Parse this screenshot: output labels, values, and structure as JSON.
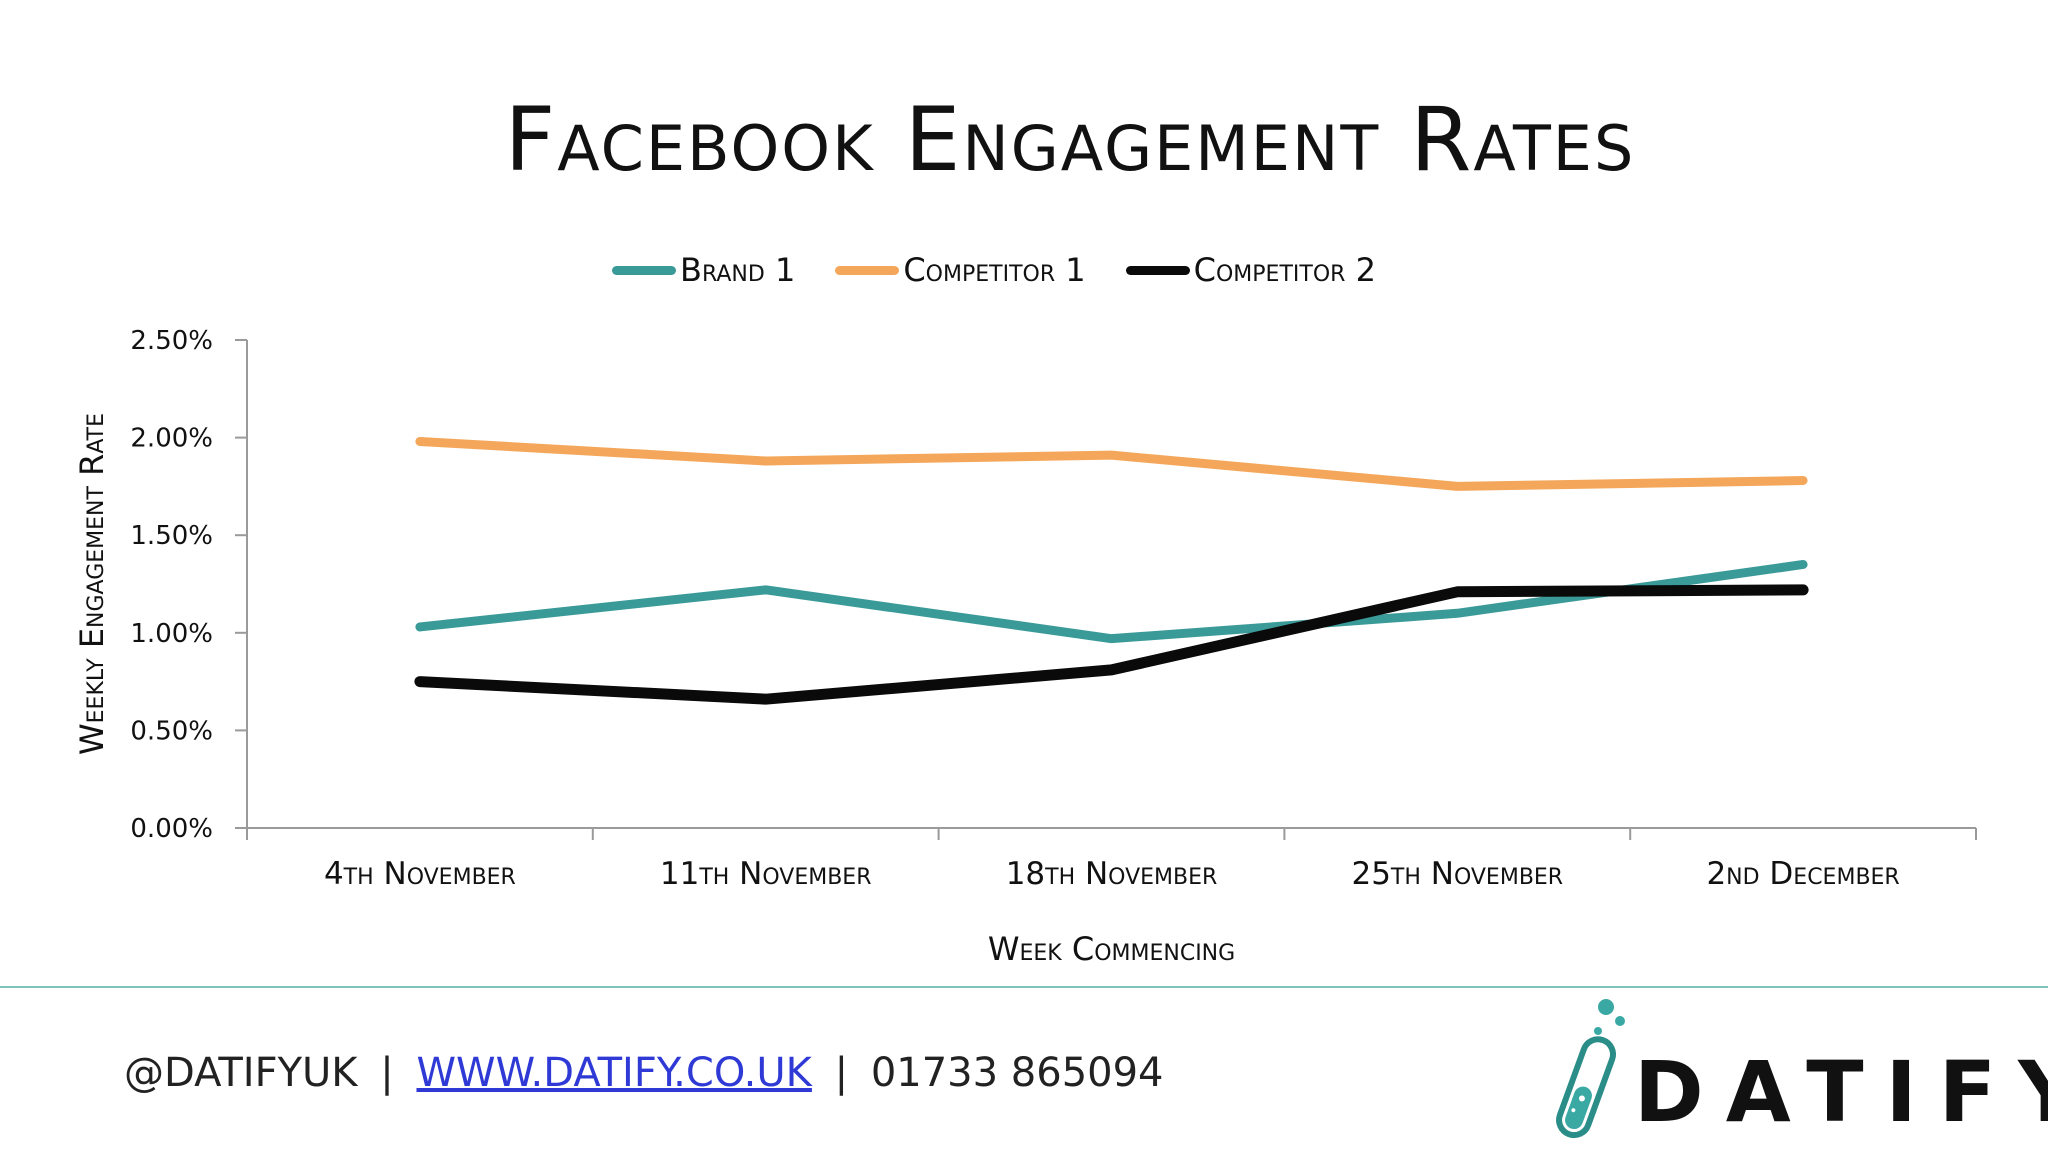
{
  "footer": {
    "handle": "@DATIFYUK",
    "separator": "|",
    "website": "WWW.DATIFY.CO.UK",
    "phone": "01733 865094",
    "logo_text": "DATIFY"
  },
  "colors": {
    "brand_1": "#3a9a98",
    "competitor_1": "#f4a75a",
    "competitor_2": "#0a0a0a",
    "accent": "#3aa9a3"
  },
  "chart_data": {
    "type": "line",
    "title": "Facebook Engagement Rates",
    "xlabel": "Week Commencing",
    "ylabel": "Weekly Engagement Rate",
    "categories": [
      "4th November",
      "11th November",
      "18th November",
      "25th November",
      "2nd December"
    ],
    "ylim": [
      0,
      0.025
    ],
    "yticks": [
      "0.00%",
      "0.50%",
      "1.00%",
      "1.50%",
      "2.00%",
      "2.50%"
    ],
    "legend_position": "top",
    "grid": false,
    "series": [
      {
        "name": "Brand 1",
        "color": "#3a9a98",
        "values": [
          0.0103,
          0.0122,
          0.0097,
          0.011,
          0.0135
        ]
      },
      {
        "name": "Competitor 1",
        "color": "#f4a75a",
        "values": [
          0.0198,
          0.0188,
          0.0191,
          0.0175,
          0.0178
        ]
      },
      {
        "name": "Competitor 2",
        "color": "#0a0a0a",
        "values": [
          0.0075,
          0.0066,
          0.0081,
          0.0121,
          0.0122
        ]
      }
    ]
  }
}
